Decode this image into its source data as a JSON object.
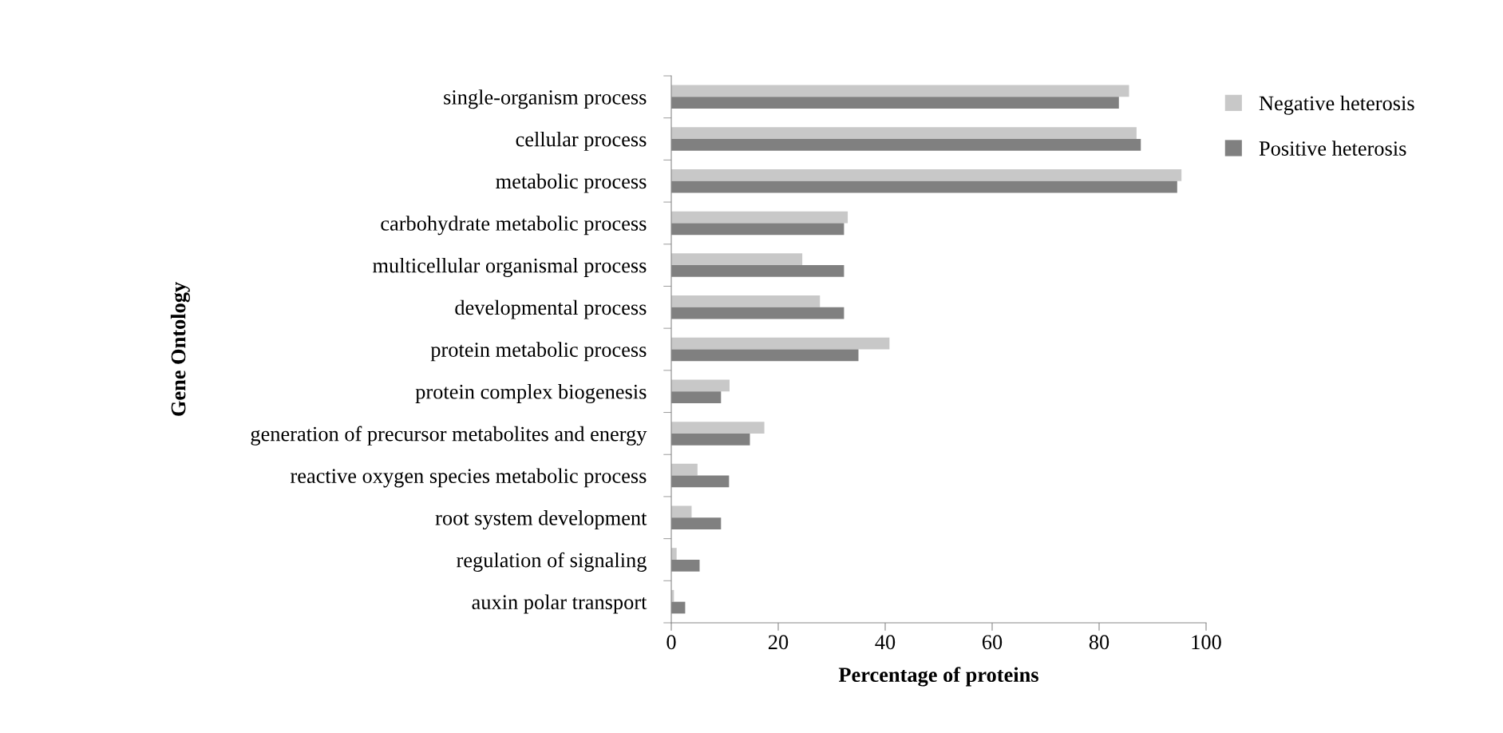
{
  "chart_data": {
    "type": "bar",
    "orientation": "horizontal",
    "xlabel": "Percentage of proteins",
    "ylabel": "Gene Ontology",
    "categories": [
      "single-organism process",
      "cellular process",
      "metabolic process",
      "carbohydrate metabolic process",
      "multicellular organismal process",
      "developmental process",
      "protein metabolic process",
      "protein complex biogenesis",
      "generation of precursor metabolites and energy",
      "reactive oxygen species metabolic process",
      "root system development",
      "regulation of signaling",
      "auxin polar transport"
    ],
    "series": [
      {
        "name": "Negative heterosis",
        "color": "#c8c8c8",
        "values": [
          85.6,
          87.0,
          95.4,
          33.0,
          24.5,
          27.8,
          40.8,
          10.9,
          17.4,
          4.9,
          3.8,
          1.0,
          0.5
        ]
      },
      {
        "name": "Positive heterosis",
        "color": "#808080",
        "values": [
          83.7,
          87.8,
          94.6,
          32.3,
          32.3,
          32.3,
          35.0,
          9.3,
          14.7,
          10.8,
          9.3,
          5.3,
          2.6
        ]
      }
    ],
    "xlim": [
      0,
      100
    ],
    "xticks": [
      0,
      20,
      40,
      60,
      80,
      100
    ],
    "grid": false,
    "legend": "top right"
  }
}
